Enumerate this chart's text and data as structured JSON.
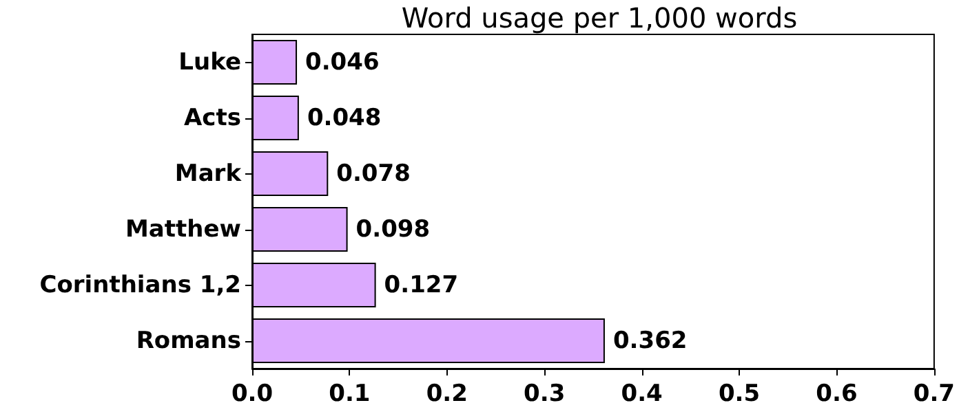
{
  "chart_data": {
    "type": "bar",
    "orientation": "horizontal",
    "title": "Word usage per 1,000 words",
    "categories": [
      "Luke",
      "Acts",
      "Mark",
      "Matthew",
      "Corinthians 1,2",
      "Romans"
    ],
    "values": [
      0.046,
      0.048,
      0.078,
      0.098,
      0.127,
      0.362
    ],
    "color": "#dcaaff",
    "data_labels": true,
    "xlim": [
      0,
      0.7
    ],
    "xticks": [
      {
        "value": 0,
        "label": "0.0"
      },
      {
        "value": 0.1,
        "label": "0.1"
      },
      {
        "value": 0.2,
        "label": "0.2"
      },
      {
        "value": 0.3,
        "label": "0.3"
      },
      {
        "value": 0.4,
        "label": "0.4"
      },
      {
        "value": 0.5,
        "label": "0.5"
      },
      {
        "value": 0.6,
        "label": "0.6"
      },
      {
        "value": 0.7,
        "label": "0.7"
      }
    ],
    "grid": false
  }
}
